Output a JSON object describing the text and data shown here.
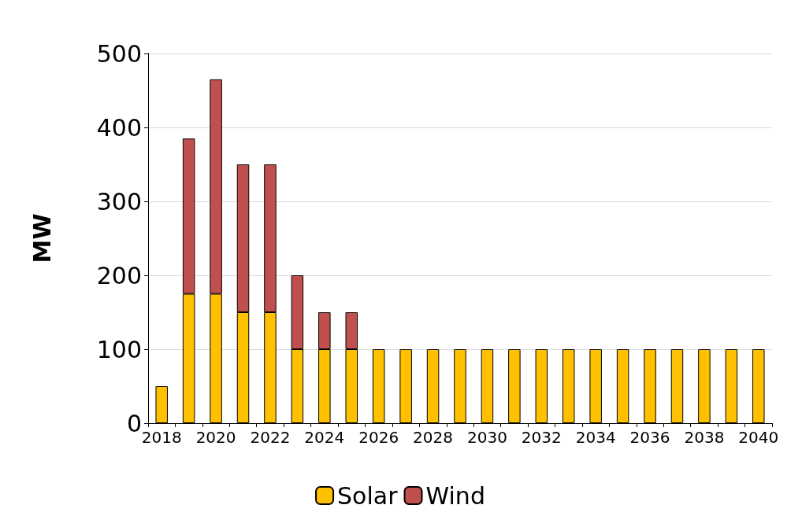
{
  "chart_data": {
    "type": "bar",
    "stacked": true,
    "ylabel": "MW",
    "categories": [
      "2018",
      null,
      "2020",
      null,
      "2022",
      null,
      "2024",
      null,
      "2026",
      null,
      "2028",
      null,
      "2030",
      null,
      "2032",
      null,
      "2034",
      null,
      "2036",
      null,
      "2038",
      null,
      "2040"
    ],
    "series": [
      {
        "name": "Solar",
        "color": "#ffc000",
        "values": [
          50,
          175,
          175,
          150,
          150,
          100,
          100,
          100,
          100,
          100,
          100,
          100,
          100,
          100,
          100,
          100,
          100,
          100,
          100,
          100,
          100,
          100,
          100
        ]
      },
      {
        "name": "Wind",
        "color": "#c0504d",
        "values": [
          null,
          210,
          290,
          200,
          200,
          100,
          50,
          50,
          null,
          null,
          null,
          null,
          null,
          null,
          null,
          null,
          null,
          null,
          null,
          null,
          null,
          null,
          null
        ]
      }
    ],
    "ylim": [
      0,
      500
    ],
    "yticks": [
      0,
      100,
      200,
      300,
      400,
      500
    ],
    "grid": "y",
    "legend": "bottom"
  }
}
